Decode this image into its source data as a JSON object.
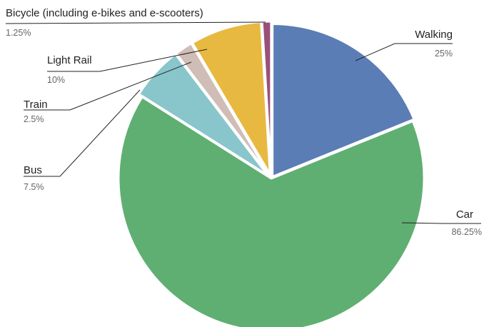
{
  "chart_data": {
    "type": "pie",
    "title": "",
    "slices": [
      {
        "label": "Walking",
        "value": 25,
        "display": "25%",
        "color": "#5b7db5"
      },
      {
        "label": "Car",
        "value": 86.25,
        "display": "86.25%",
        "color": "#5faf72"
      },
      {
        "label": "Bus",
        "value": 7.5,
        "display": "7.5%",
        "color": "#88c6cb"
      },
      {
        "label": "Train",
        "value": 2.5,
        "display": "2.5%",
        "color": "#cfbdb6"
      },
      {
        "label": "Light Rail",
        "value": 10,
        "display": "10%",
        "color": "#e8b940"
      },
      {
        "label": "Bicycle (including e-bikes and e-scooters)",
        "value": 1.25,
        "display": "1.25%",
        "color": "#9b4f7a"
      }
    ],
    "legend": "none"
  }
}
